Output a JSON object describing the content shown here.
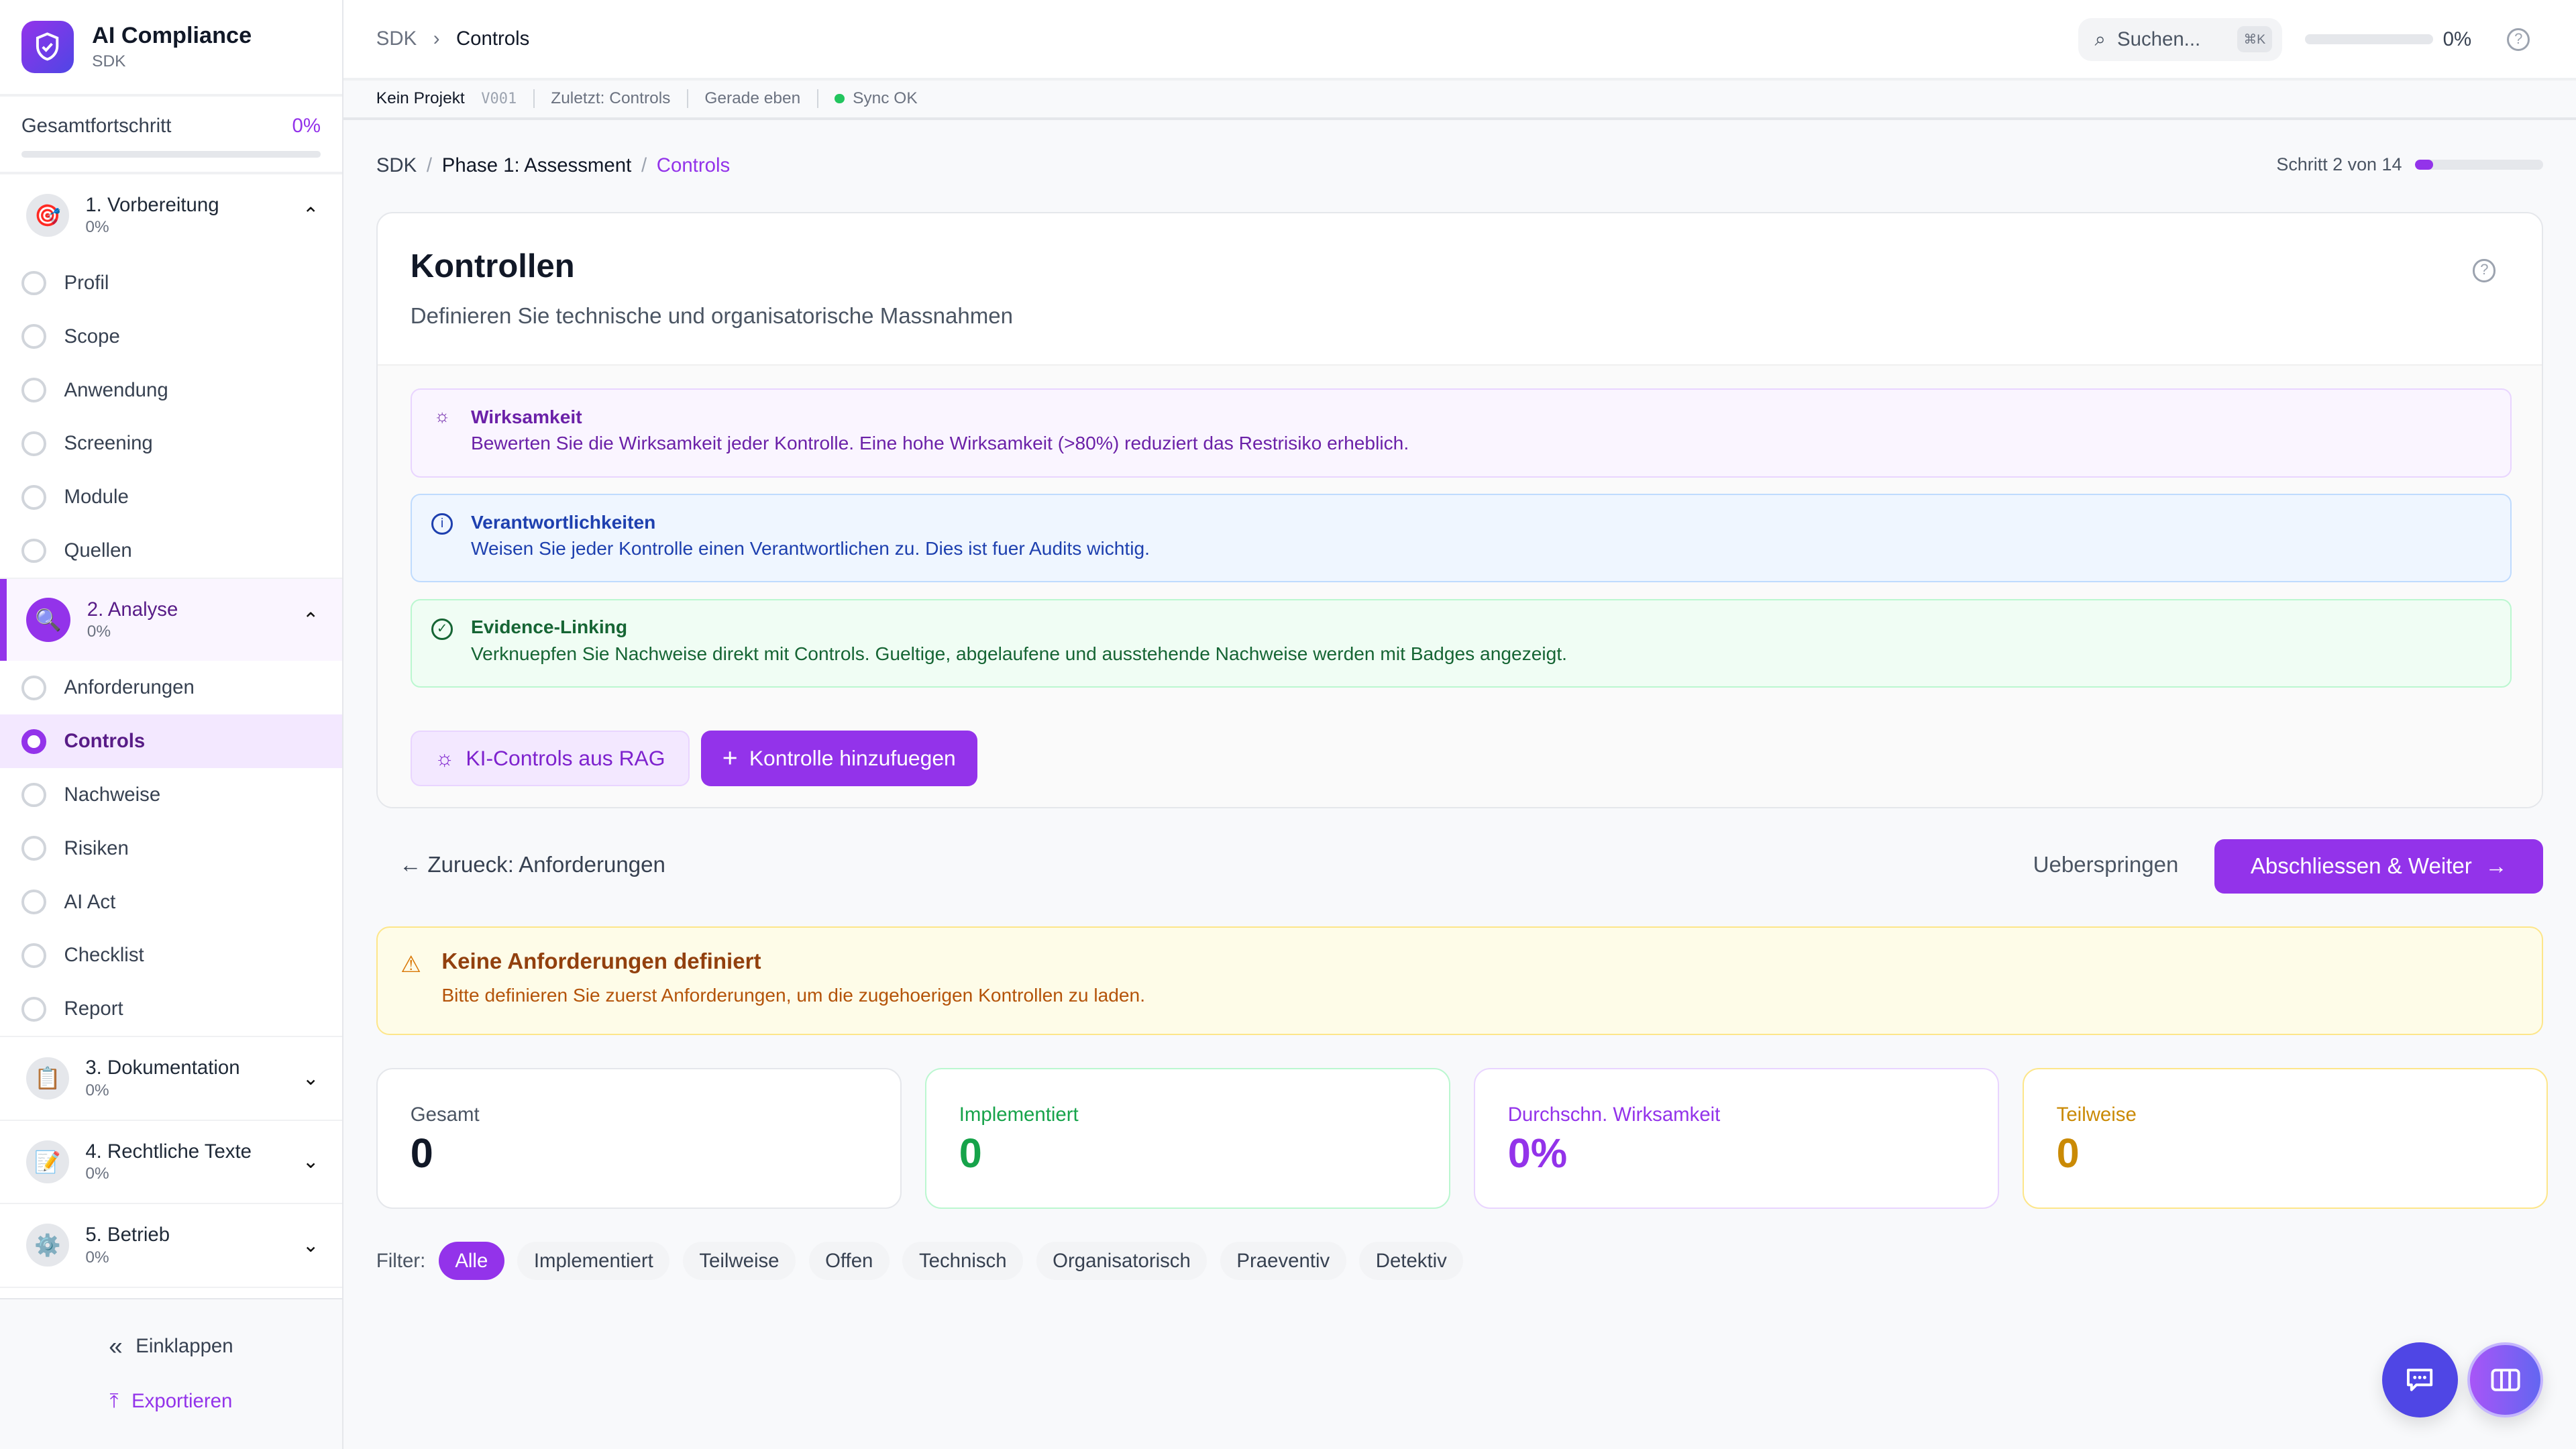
{
  "sidebar": {
    "app_title": "AI Compliance",
    "app_subtitle": "SDK",
    "progress_label": "Gesamtfortschritt",
    "progress_value": "0%",
    "progress_fraction": 0,
    "phases": [
      {
        "title": "1. Vorbereitung",
        "pct": "0%",
        "icon": "🎯",
        "expanded": true,
        "steps": [
          "Profil",
          "Scope",
          "Anwendung",
          "Screening",
          "Module",
          "Quellen"
        ]
      },
      {
        "title": "2. Analyse",
        "pct": "0%",
        "icon": "🔍",
        "expanded": true,
        "active": true,
        "steps": [
          "Anforderungen",
          "Controls",
          "Nachweise",
          "Risiken",
          "AI Act",
          "Checklist",
          "Report"
        ]
      },
      {
        "title": "3. Dokumentation",
        "pct": "0%",
        "icon": "📋"
      },
      {
        "title": "4. Rechtliche Texte",
        "pct": "0%",
        "icon": "📝"
      },
      {
        "title": "5. Betrieb",
        "pct": "0%",
        "icon": "⚙️"
      }
    ],
    "active_step": "Controls",
    "collapse_label": "Einklappen",
    "export_label": "Exportieren"
  },
  "header": {
    "crumb_root": "SDK",
    "crumb_current": "Controls",
    "search_placeholder": "Suchen...",
    "search_shortcut": "⌘K",
    "progress_value": "0%",
    "progress_fraction": 0
  },
  "status_bar": {
    "project": "Kein Projekt",
    "version": "V001",
    "last": "Zuletzt: Controls",
    "time": "Gerade eben",
    "sync": "Sync OK"
  },
  "breadcrumb": {
    "items": [
      "SDK",
      "Phase 1: Assessment",
      "Controls"
    ]
  },
  "step": {
    "label": "Schritt 2 von 14",
    "current": 2,
    "total": 14
  },
  "page": {
    "title": "Kontrollen",
    "description": "Definieren Sie technische und organisatorische Massnahmen",
    "tips": [
      {
        "title": "Wirksamkeit",
        "text": "Bewerten Sie die Wirksamkeit jeder Kontrolle. Eine hohe Wirksamkeit (>80%) reduziert das Restrisiko erheblich.",
        "icon": "lightbulb-icon"
      },
      {
        "title": "Verantwortlichkeiten",
        "text": "Weisen Sie jeder Kontrolle einen Verantwortlichen zu. Dies ist fuer Audits wichtig.",
        "icon": "info-icon"
      },
      {
        "title": "Evidence-Linking",
        "text": "Verknuepfen Sie Nachweise direkt mit Controls. Gueltige, abgelaufene und ausstehende Nachweise werden mit Badges angezeigt.",
        "icon": "check-circle-icon"
      }
    ],
    "rag_button": "KI-Controls aus RAG",
    "add_button": "Kontrolle hinzufuegen"
  },
  "navigation": {
    "back": "Zurueck: Anforderungen",
    "skip": "Ueberspringen",
    "next": "Abschliessen & Weiter"
  },
  "warning": {
    "title": "Keine Anforderungen definiert",
    "text": "Bitte definieren Sie zuerst Anforderungen, um die zugehoerigen Kontrollen zu laden."
  },
  "stats": [
    {
      "label": "Gesamt",
      "value": "0",
      "color": "#111827",
      "label_color": "#4b5563",
      "border": "#e5e7eb"
    },
    {
      "label": "Implementiert",
      "value": "0",
      "color": "#16a34a",
      "label_color": "#16a34a",
      "border": "#bbf7d0"
    },
    {
      "label": "Durchschn. Wirksamkeit",
      "value": "0%",
      "color": "#9333ea",
      "label_color": "#9333ea",
      "border": "#e9d5ff"
    },
    {
      "label": "Teilweise",
      "value": "0",
      "color": "#ca8a04",
      "label_color": "#ca8a04",
      "border": "#fde68a"
    }
  ],
  "filters": {
    "label": "Filter:",
    "options": [
      "Alle",
      "Implementiert",
      "Teilweise",
      "Offen",
      "Technisch",
      "Organisatorisch",
      "Praeventiv",
      "Detektiv"
    ],
    "selected": "Alle"
  },
  "colors": {
    "accent": "#9333ea",
    "chat_fab": "#4f46e5"
  }
}
